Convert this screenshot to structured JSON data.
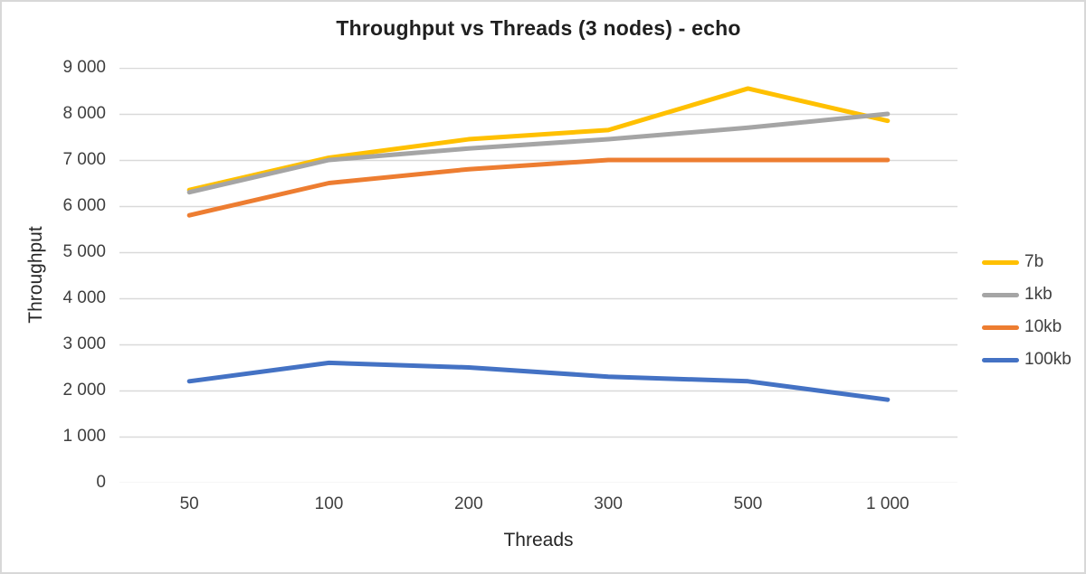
{
  "chart_data": {
    "type": "line",
    "title": "Throughput vs Threads (3 nodes) - echo",
    "xlabel": "Threads",
    "ylabel": "Throughput",
    "categories": [
      "50",
      "100",
      "200",
      "300",
      "500",
      "1 000"
    ],
    "series": [
      {
        "name": "7b",
        "color": "#FFC000",
        "values": [
          6350,
          7050,
          7450,
          7650,
          8550,
          7850
        ]
      },
      {
        "name": "1kb",
        "color": "#A5A5A5",
        "values": [
          6300,
          7000,
          7250,
          7450,
          7700,
          8000
        ]
      },
      {
        "name": "10kb",
        "color": "#ED7D31",
        "values": [
          5800,
          6500,
          6800,
          7000,
          7000,
          7000
        ]
      },
      {
        "name": "100kb",
        "color": "#4472C4",
        "values": [
          2200,
          2600,
          2500,
          2300,
          2200,
          1800
        ]
      }
    ],
    "ylim": [
      0,
      9000
    ],
    "ytick_step": 1000,
    "ytick_labels": [
      "0",
      "1 000",
      "2 000",
      "3 000",
      "4 000",
      "5 000",
      "6 000",
      "7 000",
      "8 000",
      "9 000"
    ],
    "grid": true,
    "gridline_color": "#D9D9D9",
    "legend_position": "right",
    "line_width": 5
  }
}
